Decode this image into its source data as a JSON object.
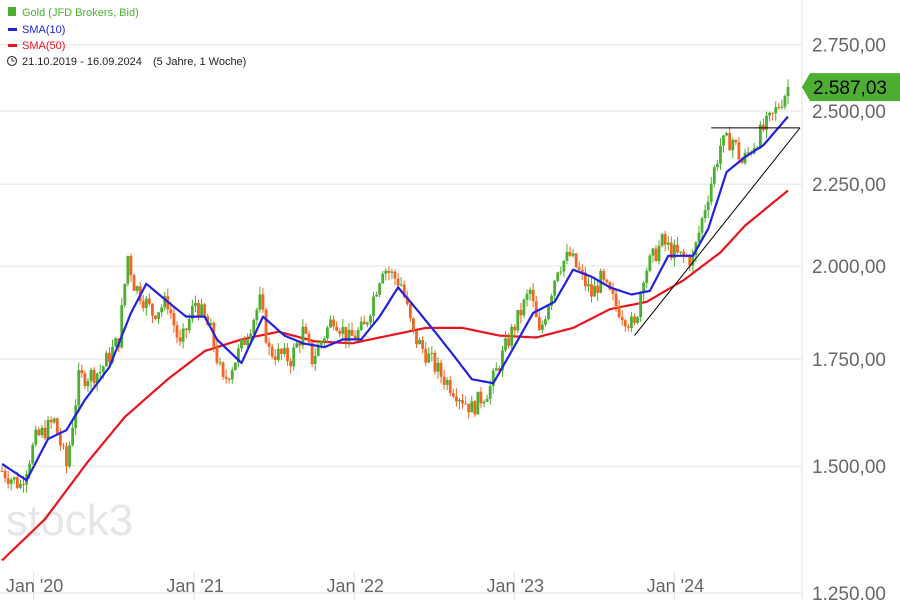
{
  "chart_data": {
    "type": "candlestick",
    "title": "Gold (JFD Brokers, Bid)",
    "period_label": "21.10.2019 - 16.09.2024",
    "period_note": "(5 Jahre, 1 Woche)",
    "last_price": 2587.03,
    "last_price_label": "2.587,03",
    "y_scale": "log",
    "ylim": [
      1250,
      2870
    ],
    "y_ticks": [
      {
        "value": 1250,
        "label": "1.250,00"
      },
      {
        "value": 1500,
        "label": "1.500,00"
      },
      {
        "value": 1750,
        "label": "1.750,00"
      },
      {
        "value": 2000,
        "label": "2.000,00"
      },
      {
        "value": 2250,
        "label": "2.250,00"
      },
      {
        "value": 2500,
        "label": "2.500,00"
      },
      {
        "value": 2750,
        "label": "2.750,00"
      }
    ],
    "x_range": [
      "2019-10-21",
      "2024-09-16"
    ],
    "x_ticks": [
      {
        "date": "2020-01-01",
        "label": "Jan '20"
      },
      {
        "date": "2021-01-01",
        "label": "Jan '21"
      },
      {
        "date": "2022-01-01",
        "label": "Jan '22"
      },
      {
        "date": "2023-01-01",
        "label": "Jan '23"
      },
      {
        "date": "2024-01-01",
        "label": "Jan '24"
      }
    ],
    "series": [
      {
        "name": "Gold (JFD Brokers, Bid)",
        "kind": "ohlc",
        "up_color": "#4caf32",
        "down_color": "#f26522"
      },
      {
        "name": "SMA(10)",
        "kind": "line",
        "color": "#2222dd"
      },
      {
        "name": "SMA(50)",
        "kind": "line",
        "color": "#e8141e"
      }
    ],
    "price_path": [
      [
        "2019-10-21",
        1490
      ],
      [
        "2019-12-02",
        1460
      ],
      [
        "2020-01-06",
        1560
      ],
      [
        "2020-02-17",
        1600
      ],
      [
        "2020-03-16",
        1500
      ],
      [
        "2020-04-13",
        1700
      ],
      [
        "2020-06-01",
        1720
      ],
      [
        "2020-07-13",
        1800
      ],
      [
        "2020-08-03",
        2030
      ],
      [
        "2020-08-17",
        1950
      ],
      [
        "2020-09-28",
        1870
      ],
      [
        "2020-11-02",
        1900
      ],
      [
        "2020-11-30",
        1780
      ],
      [
        "2021-01-04",
        1900
      ],
      [
        "2021-02-08",
        1820
      ],
      [
        "2021-03-08",
        1690
      ],
      [
        "2021-04-19",
        1780
      ],
      [
        "2021-05-31",
        1900
      ],
      [
        "2021-06-21",
        1770
      ],
      [
        "2021-08-09",
        1750
      ],
      [
        "2021-09-06",
        1820
      ],
      [
        "2021-09-27",
        1750
      ],
      [
        "2021-11-15",
        1860
      ],
      [
        "2021-12-20",
        1800
      ],
      [
        "2022-01-24",
        1830
      ],
      [
        "2022-03-07",
        2000
      ],
      [
        "2022-04-18",
        1950
      ],
      [
        "2022-05-16",
        1810
      ],
      [
        "2022-07-18",
        1710
      ],
      [
        "2022-09-26",
        1630
      ],
      [
        "2022-11-07",
        1680
      ],
      [
        "2022-12-19",
        1800
      ],
      [
        "2023-02-06",
        1930
      ],
      [
        "2023-02-27",
        1810
      ],
      [
        "2023-04-10",
        2000
      ],
      [
        "2023-05-08",
        2030
      ],
      [
        "2023-06-26",
        1920
      ],
      [
        "2023-07-17",
        1960
      ],
      [
        "2023-08-21",
        1890
      ],
      [
        "2023-10-02",
        1830
      ],
      [
        "2023-10-23",
        1980
      ],
      [
        "2023-12-04",
        2070
      ],
      [
        "2024-01-08",
        2030
      ],
      [
        "2024-02-12",
        2020
      ],
      [
        "2024-03-11",
        2180
      ],
      [
        "2024-04-15",
        2380
      ],
      [
        "2024-05-13",
        2400
      ],
      [
        "2024-06-03",
        2320
      ],
      [
        "2024-07-15",
        2420
      ],
      [
        "2024-08-12",
        2480
      ],
      [
        "2024-09-16",
        2587
      ]
    ],
    "sma10_path": [
      [
        "2019-10-21",
        1505
      ],
      [
        "2019-12-16",
        1470
      ],
      [
        "2020-02-03",
        1560
      ],
      [
        "2020-03-16",
        1580
      ],
      [
        "2020-04-27",
        1650
      ],
      [
        "2020-06-22",
        1730
      ],
      [
        "2020-08-10",
        1870
      ],
      [
        "2020-09-14",
        1950
      ],
      [
        "2020-11-02",
        1900
      ],
      [
        "2020-12-14",
        1860
      ],
      [
        "2021-01-25",
        1860
      ],
      [
        "2021-02-22",
        1800
      ],
      [
        "2021-04-19",
        1740
      ],
      [
        "2021-06-07",
        1860
      ],
      [
        "2021-07-26",
        1810
      ],
      [
        "2021-09-06",
        1790
      ],
      [
        "2021-10-25",
        1780
      ],
      [
        "2021-12-06",
        1800
      ],
      [
        "2022-01-17",
        1800
      ],
      [
        "2022-02-28",
        1860
      ],
      [
        "2022-04-11",
        1940
      ],
      [
        "2022-05-23",
        1880
      ],
      [
        "2022-07-04",
        1820
      ],
      [
        "2022-08-15",
        1760
      ],
      [
        "2022-09-26",
        1700
      ],
      [
        "2022-11-14",
        1690
      ],
      [
        "2022-12-26",
        1770
      ],
      [
        "2023-02-13",
        1870
      ],
      [
        "2023-04-03",
        1900
      ],
      [
        "2023-05-15",
        1990
      ],
      [
        "2023-06-26",
        1970
      ],
      [
        "2023-08-07",
        1940
      ],
      [
        "2023-09-25",
        1920
      ],
      [
        "2023-11-06",
        1930
      ],
      [
        "2023-12-18",
        2030
      ],
      [
        "2024-02-12",
        2030
      ],
      [
        "2024-03-18",
        2110
      ],
      [
        "2024-04-29",
        2290
      ],
      [
        "2024-06-10",
        2340
      ],
      [
        "2024-07-22",
        2380
      ],
      [
        "2024-09-16",
        2480
      ]
    ],
    "sma50_path": [
      [
        "2019-10-21",
        1310
      ],
      [
        "2020-01-27",
        1390
      ],
      [
        "2020-05-04",
        1510
      ],
      [
        "2020-07-27",
        1610
      ],
      [
        "2020-11-02",
        1700
      ],
      [
        "2021-01-25",
        1770
      ],
      [
        "2021-04-19",
        1800
      ],
      [
        "2021-07-12",
        1820
      ],
      [
        "2021-10-04",
        1795
      ],
      [
        "2021-12-27",
        1790
      ],
      [
        "2022-03-21",
        1810
      ],
      [
        "2022-06-13",
        1830
      ],
      [
        "2022-09-05",
        1830
      ],
      [
        "2022-11-28",
        1810
      ],
      [
        "2023-02-20",
        1805
      ],
      [
        "2023-05-15",
        1830
      ],
      [
        "2023-08-07",
        1880
      ],
      [
        "2023-10-30",
        1900
      ],
      [
        "2024-01-22",
        1960
      ],
      [
        "2024-04-15",
        2040
      ],
      [
        "2024-06-10",
        2120
      ],
      [
        "2024-09-16",
        2230
      ]
    ],
    "trendlines": [
      {
        "type": "resistance",
        "from": [
          "2024-03-25",
          2440
        ],
        "to": [
          "2024-09-16",
          2440
        ],
        "color": "#000000"
      },
      {
        "type": "support",
        "from": [
          "2023-10-02",
          1810
        ],
        "to": [
          "2024-09-16",
          2440
        ],
        "color": "#000000"
      }
    ],
    "grid": "horizontal",
    "legend_position": "top-left"
  },
  "legend": {
    "main": "Gold (JFD Brokers, Bid)",
    "sma10": "SMA(10)",
    "sma50": "SMA(50)",
    "period": "21.10.2019 - 16.09.2024",
    "period_note": "(5 Jahre, 1 Woche)"
  },
  "watermark": "stock3",
  "colors": {
    "up": "#4caf32",
    "down": "#f26522",
    "sma10": "#2222dd",
    "sma50": "#e8141e",
    "price_badge": "#4caf32",
    "grid": "#e4e4e4",
    "axis_text": "#666666"
  }
}
